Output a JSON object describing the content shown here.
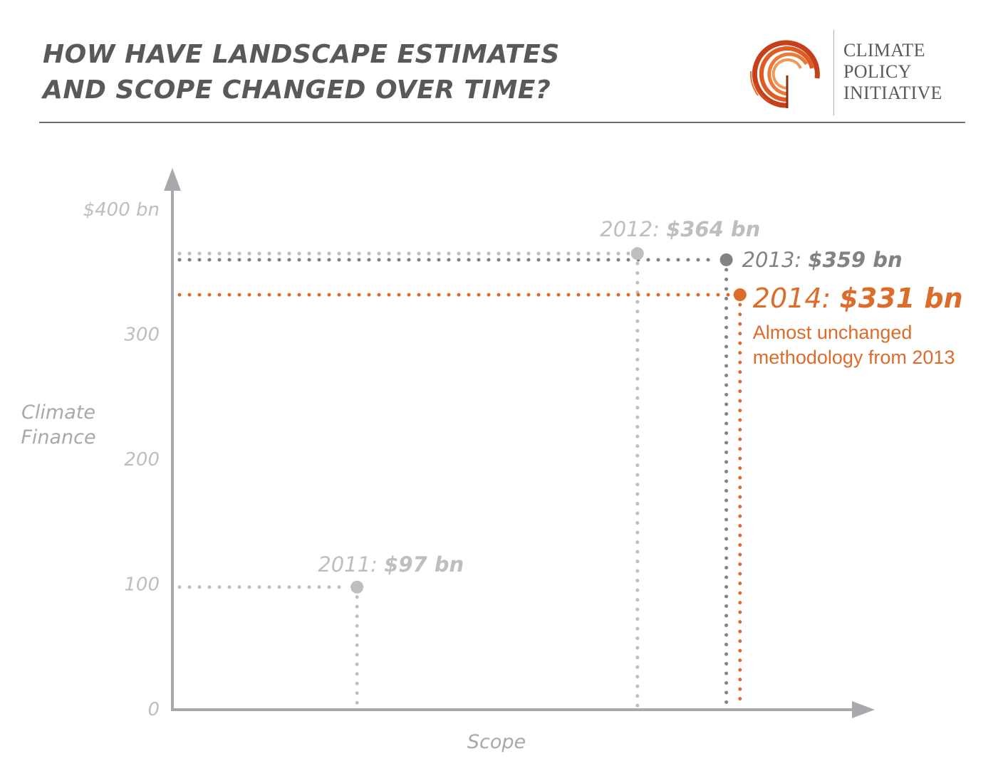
{
  "header": {
    "title_line1": "HOW HAVE LANDSCAPE ESTIMATES",
    "title_line2": "AND SCOPE CHANGED OVER TIME?"
  },
  "logo": {
    "line1": "CLIMATE",
    "line2": "POLICY",
    "line3": "INITIATIVE"
  },
  "colors": {
    "light_gray": "#bcbec0",
    "mid_gray": "#808285",
    "dark_gray": "#6d6e71",
    "orange": "#dd6b2a",
    "axis": "#a7a9ac"
  },
  "chart_data": {
    "type": "scatter",
    "ylabel": "Climate Finance",
    "xlabel": "Scope",
    "ylim": [
      0,
      400
    ],
    "y_ticks": [
      {
        "value": 0,
        "label": "0"
      },
      {
        "value": 100,
        "label": "100"
      },
      {
        "value": 200,
        "label": "200"
      },
      {
        "value": 300,
        "label": "300"
      },
      {
        "value": 400,
        "label": "$400 bn"
      }
    ],
    "points": [
      {
        "year_label": "2011:",
        "value_label": "$97 bn",
        "value": 97,
        "scope": 0.27,
        "color": "#bcbec0"
      },
      {
        "year_label": "2012:",
        "value_label": "$364 bn",
        "value": 364,
        "scope": 0.68,
        "color": "#bcbec0"
      },
      {
        "year_label": "2013:",
        "value_label": "$359 bn",
        "value": 359,
        "scope": 0.81,
        "color": "#808285"
      },
      {
        "year_label": "2014:",
        "value_label": "$331 bn",
        "value": 331,
        "scope": 0.83,
        "color": "#dd6b2a"
      }
    ],
    "annotation": {
      "line1": "Almost unchanged",
      "line2": "methodology from 2013"
    }
  }
}
